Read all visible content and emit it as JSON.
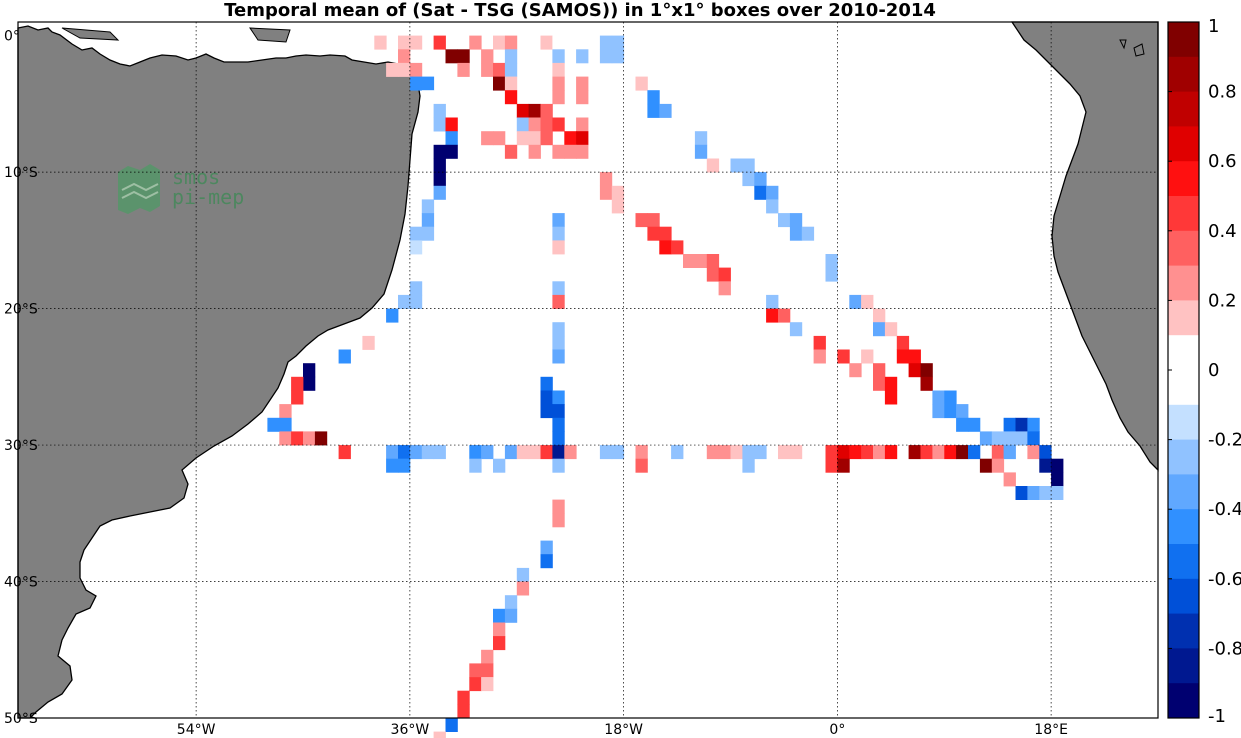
{
  "title": "Temporal mean of (Sat - TSG (SAMOS)) in 1°x1° boxes over 2010-2014",
  "logo": {
    "line1": "smos",
    "line2": "pi-mep"
  },
  "lat_ticks": [
    {
      "lat": 0,
      "label": "0°"
    },
    {
      "lat": -10,
      "label": "10°S"
    },
    {
      "lat": -20,
      "label": "20°S"
    },
    {
      "lat": -30,
      "label": "30°S"
    },
    {
      "lat": -40,
      "label": "40°S"
    },
    {
      "lat": -50,
      "label": "50°S"
    }
  ],
  "lon_ticks": [
    {
      "lon": -54,
      "label": "54°W"
    },
    {
      "lon": -36,
      "label": "36°W"
    },
    {
      "lon": -18,
      "label": "18°W"
    },
    {
      "lon": 0,
      "label": "0°"
    },
    {
      "lon": 18,
      "label": "18°E"
    }
  ],
  "colorbar": {
    "min": -1,
    "max": 1,
    "labels": [
      "1",
      "0.8",
      "0.6",
      "0.4",
      "0.2",
      "0",
      "-0.2",
      "-0.4",
      "-0.6",
      "-0.8",
      "-1"
    ],
    "colors_top_to_bottom": [
      "#800000",
      "#a00000",
      "#c00000",
      "#e00000",
      "#ff1010",
      "#ff3838",
      "#ff6060",
      "#ff9090",
      "#ffc2c2",
      "#ffffff",
      "#ffffff",
      "#c4e0ff",
      "#90c2ff",
      "#60a8ff",
      "#3090ff",
      "#1070f0",
      "#0050d8",
      "#0030b0",
      "#001890",
      "#000070"
    ]
  },
  "chart_data": {
    "type": "heatmap",
    "title": "Temporal mean of (Sat - TSG (SAMOS)) in 1°x1° boxes over 2010-2014",
    "xlim": [
      -69,
      27
    ],
    "ylim": [
      -50,
      1
    ],
    "cells": [
      [
        -39,
        0,
        0.2
      ],
      [
        -37,
        0,
        0.2
      ],
      [
        -36,
        0,
        0.2
      ],
      [
        -34,
        0,
        0.5
      ],
      [
        -31,
        0,
        0.3
      ],
      [
        -29,
        0,
        0.2
      ],
      [
        -28,
        0,
        0.3
      ],
      [
        -25,
        0,
        0.2
      ],
      [
        -24,
        0,
        0.1
      ],
      [
        -20,
        0,
        -0.2
      ],
      [
        -19,
        0,
        -0.2
      ],
      [
        -37,
        -1,
        0.3
      ],
      [
        -33,
        -1,
        0.9
      ],
      [
        -32,
        -1,
        0.9
      ],
      [
        -30,
        -1,
        0.3
      ],
      [
        -28,
        -1,
        -0.2
      ],
      [
        -24,
        -1,
        -0.2
      ],
      [
        -22,
        -1,
        -0.2
      ],
      [
        -20,
        -1,
        -0.2
      ],
      [
        -19,
        -1,
        -0.2
      ],
      [
        -38,
        -2,
        0.2
      ],
      [
        -37,
        -2,
        0.2
      ],
      [
        -36,
        -2,
        0.3
      ],
      [
        -32,
        -2,
        0.3
      ],
      [
        -30,
        -2,
        0.3
      ],
      [
        -29,
        -2,
        0.4
      ],
      [
        -28,
        -2,
        -0.2
      ],
      [
        -24,
        -2,
        0.2
      ],
      [
        -36,
        -3,
        -0.4
      ],
      [
        -35,
        -3,
        -0.4
      ],
      [
        -29,
        -3,
        0.9
      ],
      [
        -28,
        -3,
        0.2
      ],
      [
        -24,
        -3,
        0.3
      ],
      [
        -22,
        -3,
        0.3
      ],
      [
        -17,
        -3,
        0.2
      ],
      [
        -35,
        -4,
        0.1
      ],
      [
        -28,
        -4,
        0.6
      ],
      [
        -24,
        -4,
        0.3
      ],
      [
        -22,
        -4,
        0.3
      ],
      [
        -16,
        -4,
        -0.4
      ],
      [
        -34,
        -5,
        -0.2
      ],
      [
        -27,
        -5,
        0.7
      ],
      [
        -26,
        -5,
        0.8
      ],
      [
        -25,
        -5,
        0.4
      ],
      [
        -16,
        -5,
        -0.4
      ],
      [
        -15,
        -5,
        -0.3
      ],
      [
        -34,
        -6,
        -0.2
      ],
      [
        -33,
        -6,
        0.6
      ],
      [
        -27,
        -6,
        -0.2
      ],
      [
        -26,
        -6,
        0.3
      ],
      [
        -25,
        -6,
        0.4
      ],
      [
        -24,
        -6,
        0.5
      ],
      [
        -22,
        -6,
        0.3
      ],
      [
        -33,
        -7,
        -0.4
      ],
      [
        -30,
        -7,
        0.3
      ],
      [
        -29,
        -7,
        0.3
      ],
      [
        -27,
        -7,
        0.2
      ],
      [
        -26,
        -7,
        0.2
      ],
      [
        -25,
        -7,
        0.4
      ],
      [
        -23,
        -7,
        0.6
      ],
      [
        -22,
        -7,
        0.7
      ],
      [
        -12,
        -7,
        -0.2
      ],
      [
        -34,
        -8,
        -1.0
      ],
      [
        -33,
        -8,
        -1.0
      ],
      [
        -28,
        -8,
        0.4
      ],
      [
        -26,
        -8,
        0.3
      ],
      [
        -24,
        -8,
        0.3
      ],
      [
        -23,
        -8,
        0.3
      ],
      [
        -22,
        -8,
        0.3
      ],
      [
        -12,
        -8,
        -0.3
      ],
      [
        -34,
        -9,
        -1.0
      ],
      [
        -11,
        -9,
        0.2
      ],
      [
        -9,
        -9,
        -0.2
      ],
      [
        -8,
        -9,
        -0.2
      ],
      [
        -34,
        -10,
        -0.9
      ],
      [
        -20,
        -10,
        0.3
      ],
      [
        -8,
        -10,
        -0.2
      ],
      [
        -7,
        -10,
        -0.3
      ],
      [
        -34,
        -11,
        -0.3
      ],
      [
        -20,
        -11,
        0.3
      ],
      [
        -19,
        -11,
        0.2
      ],
      [
        -7,
        -11,
        -0.5
      ],
      [
        -6,
        -11,
        -0.3
      ],
      [
        -35,
        -12,
        -0.2
      ],
      [
        -19,
        -12,
        0.2
      ],
      [
        -6,
        -12,
        -0.2
      ],
      [
        -35,
        -13,
        -0.3
      ],
      [
        -24,
        -13,
        -0.3
      ],
      [
        -17,
        -13,
        0.4
      ],
      [
        -16,
        -13,
        0.4
      ],
      [
        -5,
        -13,
        -0.2
      ],
      [
        -4,
        -13,
        -0.3
      ],
      [
        -36,
        -14,
        -0.2
      ],
      [
        -35,
        -14,
        -0.2
      ],
      [
        -24,
        -14,
        -0.2
      ],
      [
        -16,
        -14,
        0.5
      ],
      [
        -15,
        -14,
        0.5
      ],
      [
        -4,
        -14,
        -0.3
      ],
      [
        -3,
        -14,
        -0.2
      ],
      [
        -36,
        -15,
        -0.1
      ],
      [
        -24,
        -15,
        0.2
      ],
      [
        -15,
        -15,
        0.6
      ],
      [
        -14,
        -15,
        0.5
      ],
      [
        -13,
        -16,
        0.3
      ],
      [
        -12,
        -16,
        0.3
      ],
      [
        -11,
        -16,
        0.4
      ],
      [
        -1,
        -16,
        -0.2
      ],
      [
        -11,
        -17,
        0.4
      ],
      [
        -10,
        -17,
        0.5
      ],
      [
        -1,
        -17,
        -0.2
      ],
      [
        -36,
        -18,
        -0.2
      ],
      [
        -24,
        -18,
        -0.2
      ],
      [
        -10,
        -18,
        0.3
      ],
      [
        -37,
        -19,
        -0.2
      ],
      [
        -36,
        -19,
        -0.2
      ],
      [
        -24,
        -19,
        0.4
      ],
      [
        -6,
        -19,
        -0.2
      ],
      [
        1,
        -19,
        -0.3
      ],
      [
        2,
        -19,
        0.2
      ],
      [
        -38,
        -20,
        -0.4
      ],
      [
        -6,
        -20,
        0.6
      ],
      [
        -5,
        -20,
        0.4
      ],
      [
        3,
        -20,
        0.2
      ],
      [
        -24,
        -21,
        -0.2
      ],
      [
        -4,
        -21,
        -0.2
      ],
      [
        3,
        -21,
        -0.3
      ],
      [
        4,
        -21,
        0.2
      ],
      [
        -40,
        -22,
        0.2
      ],
      [
        -24,
        -22,
        -0.2
      ],
      [
        -2,
        -22,
        0.5
      ],
      [
        5,
        -22,
        0.5
      ],
      [
        -42,
        -23,
        -0.4
      ],
      [
        -24,
        -23,
        -0.3
      ],
      [
        -2,
        -23,
        0.3
      ],
      [
        0,
        -23,
        0.5
      ],
      [
        2,
        -23,
        0.2
      ],
      [
        5,
        -23,
        0.6
      ],
      [
        6,
        -23,
        0.6
      ],
      [
        -45,
        -24,
        -1.0
      ],
      [
        1,
        -24,
        0.3
      ],
      [
        3,
        -24,
        0.4
      ],
      [
        6,
        -24,
        0.7
      ],
      [
        7,
        -24,
        1.0
      ],
      [
        -45,
        -25,
        -1.0
      ],
      [
        -46,
        -25,
        0.5
      ],
      [
        -25,
        -25,
        -0.5
      ],
      [
        3,
        -25,
        0.4
      ],
      [
        4,
        -25,
        0.6
      ],
      [
        7,
        -25,
        0.8
      ],
      [
        -46,
        -26,
        0.5
      ],
      [
        -25,
        -26,
        -0.6
      ],
      [
        -24,
        -26,
        -0.4
      ],
      [
        4,
        -26,
        0.6
      ],
      [
        8,
        -26,
        -0.3
      ],
      [
        9,
        -26,
        -0.4
      ],
      [
        -47,
        -27,
        0.3
      ],
      [
        -25,
        -27,
        -0.6
      ],
      [
        -24,
        -27,
        -0.6
      ],
      [
        8,
        -27,
        -0.3
      ],
      [
        9,
        -27,
        -0.4
      ],
      [
        10,
        -27,
        -0.3
      ],
      [
        -48,
        -28,
        -0.4
      ],
      [
        -47,
        -28,
        -0.4
      ],
      [
        -24,
        -28,
        -0.5
      ],
      [
        10,
        -28,
        -0.4
      ],
      [
        11,
        -28,
        -0.4
      ],
      [
        14,
        -28,
        -0.5
      ],
      [
        15,
        -28,
        -0.7
      ],
      [
        16,
        -28,
        -0.4
      ],
      [
        -47,
        -29,
        0.3
      ],
      [
        -46,
        -29,
        0.5
      ],
      [
        -45,
        -29,
        0.3
      ],
      [
        -44,
        -29,
        1.0
      ],
      [
        -24,
        -29,
        -0.5
      ],
      [
        12,
        -29,
        -0.3
      ],
      [
        13,
        -29,
        -0.2
      ],
      [
        14,
        -29,
        -0.2
      ],
      [
        15,
        -29,
        -0.2
      ],
      [
        16,
        -29,
        -0.5
      ],
      [
        -42,
        -30,
        0.5
      ],
      [
        -38,
        -30,
        -0.3
      ],
      [
        -37,
        -30,
        -0.5
      ],
      [
        -36,
        -30,
        -0.3
      ],
      [
        -35,
        -30,
        -0.2
      ],
      [
        -34,
        -30,
        -0.2
      ],
      [
        -31,
        -30,
        -0.4
      ],
      [
        -30,
        -30,
        -0.3
      ],
      [
        -28,
        -30,
        -0.3
      ],
      [
        -27,
        -30,
        0.2
      ],
      [
        -26,
        -30,
        0.2
      ],
      [
        -25,
        -30,
        0.5
      ],
      [
        -24,
        -30,
        -0.8
      ],
      [
        -23,
        -30,
        0.3
      ],
      [
        -20,
        -30,
        -0.2
      ],
      [
        -19,
        -30,
        -0.2
      ],
      [
        -17,
        -30,
        0.3
      ],
      [
        -14,
        -30,
        -0.2
      ],
      [
        -11,
        -30,
        0.3
      ],
      [
        -10,
        -30,
        0.3
      ],
      [
        -9,
        -30,
        0.2
      ],
      [
        -8,
        -30,
        -0.2
      ],
      [
        -7,
        -30,
        -0.2
      ],
      [
        -5,
        -30,
        0.2
      ],
      [
        -4,
        -30,
        0.2
      ],
      [
        -1,
        -30,
        0.5
      ],
      [
        0,
        -30,
        0.7
      ],
      [
        1,
        -30,
        0.6
      ],
      [
        2,
        -30,
        0.5
      ],
      [
        3,
        -30,
        0.3
      ],
      [
        4,
        -30,
        0.6
      ],
      [
        6,
        -30,
        0.8
      ],
      [
        7,
        -30,
        0.5
      ],
      [
        8,
        -30,
        0.3
      ],
      [
        9,
        -30,
        0.6
      ],
      [
        10,
        -30,
        0.9
      ],
      [
        11,
        -30,
        -0.5
      ],
      [
        13,
        -30,
        0.4
      ],
      [
        14,
        -30,
        -0.3
      ],
      [
        16,
        -30,
        0.3
      ],
      [
        17,
        -30,
        -0.6
      ],
      [
        -38,
        -31,
        -0.4
      ],
      [
        -37,
        -31,
        -0.4
      ],
      [
        -31,
        -31,
        -0.2
      ],
      [
        -29,
        -31,
        -0.2
      ],
      [
        -24,
        -31,
        -0.2
      ],
      [
        -17,
        -31,
        0.4
      ],
      [
        -8,
        -31,
        -0.2
      ],
      [
        -1,
        -31,
        0.5
      ],
      [
        0,
        -31,
        0.8
      ],
      [
        12,
        -31,
        1.0
      ],
      [
        13,
        -31,
        0.3
      ],
      [
        17,
        -31,
        -0.8
      ],
      [
        18,
        -31,
        -0.9
      ],
      [
        14,
        -32,
        0.3
      ],
      [
        18,
        -32,
        -0.9
      ],
      [
        15,
        -33,
        -0.6
      ],
      [
        16,
        -33,
        -0.3
      ],
      [
        17,
        -33,
        -0.2
      ],
      [
        18,
        -33,
        -0.2
      ],
      [
        -24,
        -34,
        0.3
      ],
      [
        -24,
        -35,
        0.3
      ],
      [
        -25,
        -37,
        -0.3
      ],
      [
        -25,
        -38,
        -0.5
      ],
      [
        -27,
        -39,
        -0.2
      ],
      [
        -27,
        -40,
        0.3
      ],
      [
        -28,
        -41,
        -0.2
      ],
      [
        -29,
        -42,
        -0.4
      ],
      [
        -28,
        -42,
        -0.3
      ],
      [
        -29,
        -43,
        0.3
      ],
      [
        -29,
        -44,
        0.5
      ],
      [
        -30,
        -45,
        0.3
      ],
      [
        -31,
        -46,
        0.4
      ],
      [
        -30,
        -46,
        0.4
      ],
      [
        -31,
        -47,
        0.5
      ],
      [
        -30,
        -47,
        0.2
      ],
      [
        -32,
        -48,
        0.5
      ],
      [
        -32,
        -49,
        0.5
      ],
      [
        -33,
        -50,
        -0.5
      ],
      [
        -34,
        -51,
        0.2
      ]
    ]
  }
}
